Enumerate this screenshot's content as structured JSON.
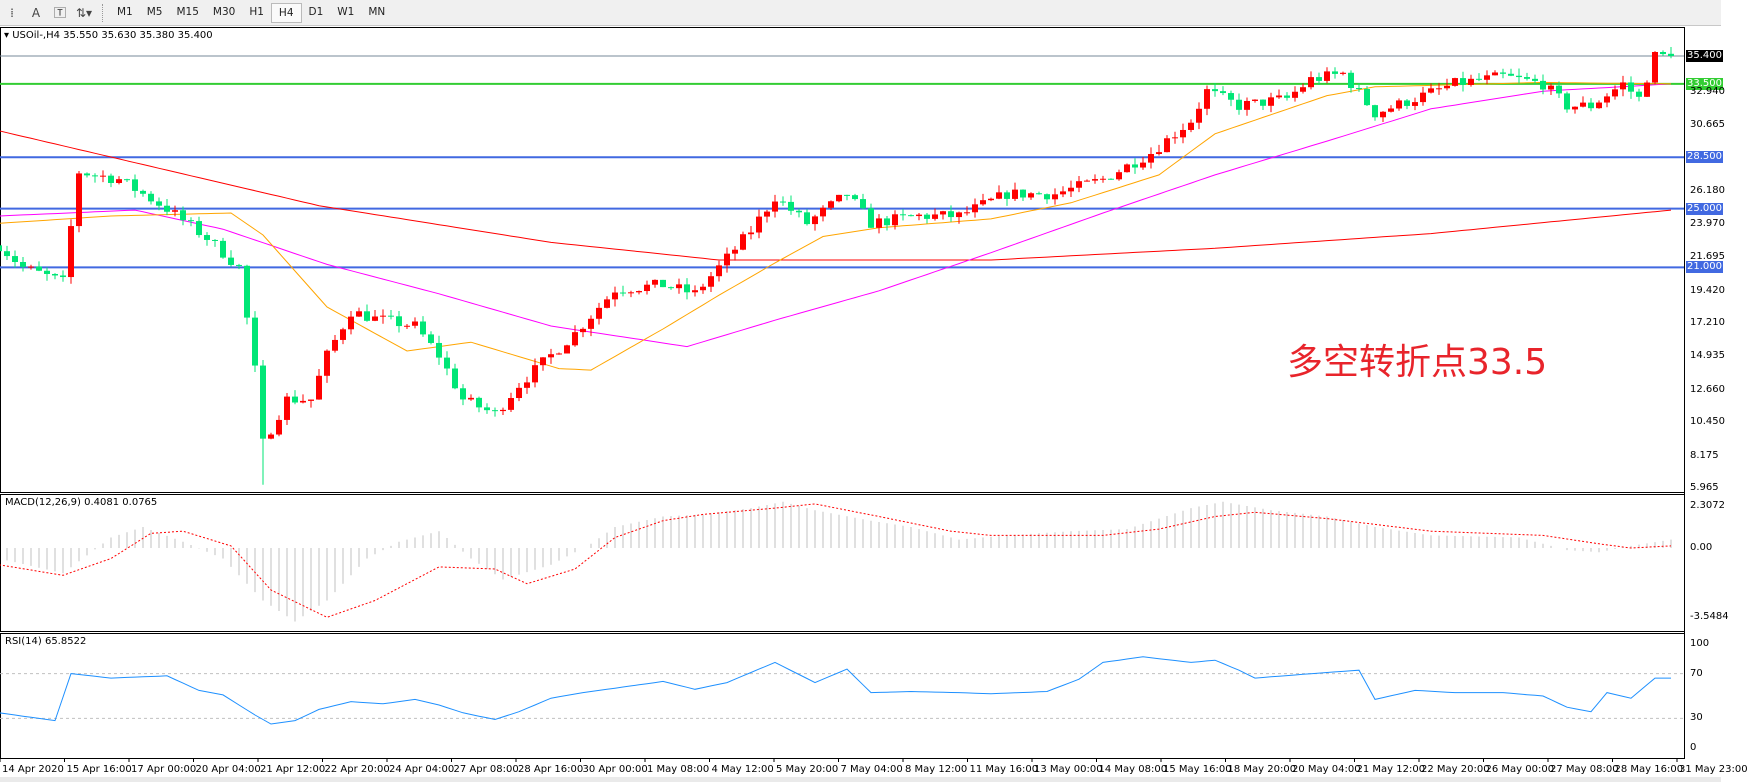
{
  "toolbar": {
    "icons": [
      "period-separator-icon",
      "text-label-icon",
      "text-box-icon",
      "arrows-icon"
    ],
    "text_icon": "A",
    "timeframes": [
      "M1",
      "M5",
      "M15",
      "M30",
      "H1",
      "H4",
      "D1",
      "W1",
      "MN"
    ],
    "active": "H4"
  },
  "chart": {
    "title": "USOil-,H4  35.550 35.630 35.380 35.400",
    "symbol": "USOil-",
    "period": "H4",
    "ohlc": {
      "open": 35.55,
      "high": 35.63,
      "low": 35.38,
      "close": 35.4
    },
    "annotation": "多空转折点33.5",
    "price_axis": [
      "32.940",
      "30.665",
      "26.180",
      "23.970",
      "21.695",
      "19.420",
      "17.210",
      "14.935",
      "12.660",
      "10.450",
      "8.175",
      "5.965"
    ],
    "price_axis_values": [
      32.94,
      30.665,
      26.18,
      23.97,
      21.695,
      19.42,
      17.21,
      14.935,
      12.66,
      10.45,
      8.175,
      5.965
    ],
    "levels": [
      {
        "label": "35.400",
        "value": 35.4,
        "color": "#778899",
        "tag": "#000000"
      },
      {
        "label": "33.500",
        "value": 33.5,
        "color": "#32cd32",
        "tag": "#32cd32"
      },
      {
        "label": "28.500",
        "value": 28.5,
        "color": "#4169e1",
        "tag": "#4169e1"
      },
      {
        "label": "25.000",
        "value": 25.0,
        "color": "#4169e1",
        "tag": "#4169e1"
      },
      {
        "label": "21.000",
        "value": 21.0,
        "color": "#4169e1",
        "tag": "#4169e1"
      }
    ],
    "colors": {
      "up": "#ff0000",
      "down": "#00e676",
      "ma_slow": "#ff0000",
      "ma_mid": "#ff00ff",
      "ma_fast": "#ffa500"
    },
    "bars": 210,
    "close_path": [
      [
        0,
        22.5
      ],
      [
        3,
        21
      ],
      [
        8,
        20
      ],
      [
        10,
        27.5
      ],
      [
        15,
        27
      ],
      [
        18,
        26
      ],
      [
        21,
        25
      ],
      [
        26,
        23
      ],
      [
        30,
        21
      ],
      [
        32,
        14
      ],
      [
        33,
        9
      ],
      [
        36,
        12
      ],
      [
        39,
        12
      ],
      [
        41,
        15
      ],
      [
        44,
        18
      ],
      [
        47,
        17.5
      ],
      [
        52,
        17
      ],
      [
        55,
        15
      ],
      [
        58,
        12
      ],
      [
        62,
        11
      ],
      [
        65,
        13
      ],
      [
        69,
        15
      ],
      [
        72,
        16.5
      ],
      [
        77,
        19.5
      ],
      [
        83,
        19.8
      ],
      [
        87,
        19.2
      ],
      [
        90,
        21
      ],
      [
        94,
        23.5
      ],
      [
        97,
        25.8
      ],
      [
        101,
        24
      ],
      [
        106,
        26
      ],
      [
        109,
        24
      ],
      [
        115,
        24.5
      ],
      [
        120,
        24.5
      ],
      [
        126,
        26
      ],
      [
        132,
        26
      ],
      [
        138,
        27
      ],
      [
        144,
        28.8
      ],
      [
        149,
        31
      ],
      [
        151,
        33
      ],
      [
        155,
        32
      ],
      [
        161,
        32.5
      ],
      [
        164,
        33.8
      ],
      [
        168,
        34.2
      ],
      [
        172,
        31.5
      ],
      [
        177,
        32.5
      ],
      [
        182,
        33.5
      ],
      [
        188,
        34
      ],
      [
        193,
        33.5
      ],
      [
        196,
        32
      ],
      [
        199,
        32
      ],
      [
        203,
        33.5
      ],
      [
        205,
        32.5
      ],
      [
        207,
        35.4
      ],
      [
        209,
        35.4
      ]
    ],
    "ma_slow": [
      [
        0,
        30.3
      ],
      [
        40,
        25.2
      ],
      [
        69,
        22.7
      ],
      [
        90,
        21.5
      ],
      [
        124,
        21.5
      ],
      [
        152,
        22.3
      ],
      [
        179,
        23.3
      ],
      [
        209,
        24.9
      ]
    ],
    "ma_mid": [
      [
        0,
        24.5
      ],
      [
        17,
        24.9
      ],
      [
        28,
        23.6
      ],
      [
        41,
        21.2
      ],
      [
        55,
        19.2
      ],
      [
        69,
        17
      ],
      [
        86,
        15.6
      ],
      [
        97,
        17.4
      ],
      [
        110,
        19.4
      ],
      [
        124,
        22
      ],
      [
        138,
        24.7
      ],
      [
        152,
        27.3
      ],
      [
        166,
        29.6
      ],
      [
        179,
        31.8
      ],
      [
        193,
        33
      ],
      [
        209,
        33.5
      ]
    ],
    "ma_fast": [
      [
        0,
        24
      ],
      [
        14,
        24.5
      ],
      [
        29,
        24.7
      ],
      [
        33,
        23.2
      ],
      [
        41,
        18.3
      ],
      [
        51,
        15.3
      ],
      [
        59,
        15.9
      ],
      [
        70,
        14.1
      ],
      [
        74,
        14
      ],
      [
        83,
        16.8
      ],
      [
        90,
        19.1
      ],
      [
        97,
        21.3
      ],
      [
        103,
        23.1
      ],
      [
        110,
        23.7
      ],
      [
        124,
        24.3
      ],
      [
        134,
        25.4
      ],
      [
        145,
        27.3
      ],
      [
        152,
        30.1
      ],
      [
        166,
        32.7
      ],
      [
        172,
        33.3
      ],
      [
        193,
        33.6
      ],
      [
        209,
        33.5
      ]
    ]
  },
  "macd": {
    "title": "MACD(12,26,9) 0.4081 0.0765",
    "axis": [
      "2.3072",
      "0.00",
      "-3.5484"
    ],
    "hist": [
      [
        0,
        -0.5
      ],
      [
        8,
        -1.2
      ],
      [
        14,
        0.5
      ],
      [
        18,
        1
      ],
      [
        23,
        0.3
      ],
      [
        28,
        -0.5
      ],
      [
        33,
        -2.5
      ],
      [
        37,
        -3.5
      ],
      [
        41,
        -2.5
      ],
      [
        46,
        -0.5
      ],
      [
        50,
        0.3
      ],
      [
        55,
        0.8
      ],
      [
        59,
        -0.5
      ],
      [
        63,
        -1.5
      ],
      [
        69,
        -0.8
      ],
      [
        74,
        0.2
      ],
      [
        77,
        1
      ],
      [
        83,
        1.5
      ],
      [
        88,
        1.6
      ],
      [
        94,
        1.9
      ],
      [
        98,
        2.2
      ],
      [
        102,
        1.8
      ],
      [
        109,
        1.3
      ],
      [
        114,
        1
      ],
      [
        120,
        0.4
      ],
      [
        126,
        0.6
      ],
      [
        134,
        0.8
      ],
      [
        141,
        0.9
      ],
      [
        149,
        1.9
      ],
      [
        153,
        2.2
      ],
      [
        159,
        1.8
      ],
      [
        166,
        1.5
      ],
      [
        172,
        1
      ],
      [
        179,
        0.6
      ],
      [
        190,
        0.5
      ],
      [
        196,
        -0.1
      ],
      [
        200,
        -0.2
      ],
      [
        204,
        0.1
      ],
      [
        209,
        0.4
      ]
    ],
    "signal": [
      [
        0,
        -0.8
      ],
      [
        8,
        -1.3
      ],
      [
        14,
        -0.5
      ],
      [
        19,
        0.7
      ],
      [
        23,
        0.8
      ],
      [
        29,
        0.1
      ],
      [
        34,
        -2
      ],
      [
        41,
        -3.3
      ],
      [
        47,
        -2.5
      ],
      [
        55,
        -0.9
      ],
      [
        62,
        -1
      ],
      [
        66,
        -1.7
      ],
      [
        72,
        -1
      ],
      [
        77,
        0.5
      ],
      [
        83,
        1.3
      ],
      [
        88,
        1.6
      ],
      [
        97,
        1.9
      ],
      [
        102,
        2.1
      ],
      [
        110,
        1.5
      ],
      [
        119,
        0.8
      ],
      [
        124,
        0.6
      ],
      [
        138,
        0.6
      ],
      [
        145,
        0.9
      ],
      [
        152,
        1.5
      ],
      [
        157,
        1.7
      ],
      [
        166,
        1.4
      ],
      [
        179,
        0.8
      ],
      [
        193,
        0.6
      ],
      [
        200,
        0.2
      ],
      [
        204,
        0
      ],
      [
        209,
        0.1
      ]
    ]
  },
  "rsi": {
    "title": "RSI(14) 65.8522",
    "axis": [
      "100",
      "70",
      "30",
      "0"
    ],
    "levels": [
      70,
      30
    ],
    "color": "#1e90ff",
    "values": [
      [
        0,
        35
      ],
      [
        7,
        28
      ],
      [
        9,
        70
      ],
      [
        14,
        66
      ],
      [
        21,
        68
      ],
      [
        25,
        55
      ],
      [
        28,
        51
      ],
      [
        32,
        33
      ],
      [
        34,
        25
      ],
      [
        37,
        28
      ],
      [
        40,
        38
      ],
      [
        44,
        45
      ],
      [
        48,
        43
      ],
      [
        52,
        47
      ],
      [
        55,
        42
      ],
      [
        58,
        35
      ],
      [
        62,
        29
      ],
      [
        65,
        36
      ],
      [
        69,
        48
      ],
      [
        73,
        53
      ],
      [
        77,
        57
      ],
      [
        83,
        63
      ],
      [
        87,
        56
      ],
      [
        91,
        62
      ],
      [
        97,
        80
      ],
      [
        102,
        62
      ],
      [
        106,
        74
      ],
      [
        109,
        53
      ],
      [
        114,
        54
      ],
      [
        120,
        53
      ],
      [
        124,
        52
      ],
      [
        131,
        54
      ],
      [
        135,
        65
      ],
      [
        138,
        80
      ],
      [
        143,
        85
      ],
      [
        149,
        80
      ],
      [
        152,
        82
      ],
      [
        155,
        73
      ],
      [
        157,
        66
      ],
      [
        166,
        71
      ],
      [
        170,
        73
      ],
      [
        172,
        47
      ],
      [
        177,
        55
      ],
      [
        182,
        53
      ],
      [
        188,
        53
      ],
      [
        193,
        50
      ],
      [
        196,
        40
      ],
      [
        199,
        36
      ],
      [
        201,
        53
      ],
      [
        204,
        48
      ],
      [
        207,
        66
      ],
      [
        209,
        66
      ]
    ]
  },
  "time_axis": [
    "14 Apr 2020",
    "15 Apr 16:00",
    "17 Apr 00:00",
    "20 Apr 04:00",
    "21 Apr 12:00",
    "22 Apr 20:00",
    "24 Apr 04:00",
    "27 Apr 08:00",
    "28 Apr 16:00",
    "30 Apr 00:00",
    "1 May 08:00",
    "4 May 12:00",
    "5 May 20:00",
    "7 May 04:00",
    "8 May 12:00",
    "11 May 16:00",
    "13 May 00:00",
    "14 May 08:00",
    "15 May 16:00",
    "18 May 20:00",
    "20 May 04:00",
    "21 May 12:00",
    "22 May 20:00",
    "26 May 00:00",
    "27 May 08:00",
    "28 May 16:00",
    "31 May 23:00"
  ]
}
